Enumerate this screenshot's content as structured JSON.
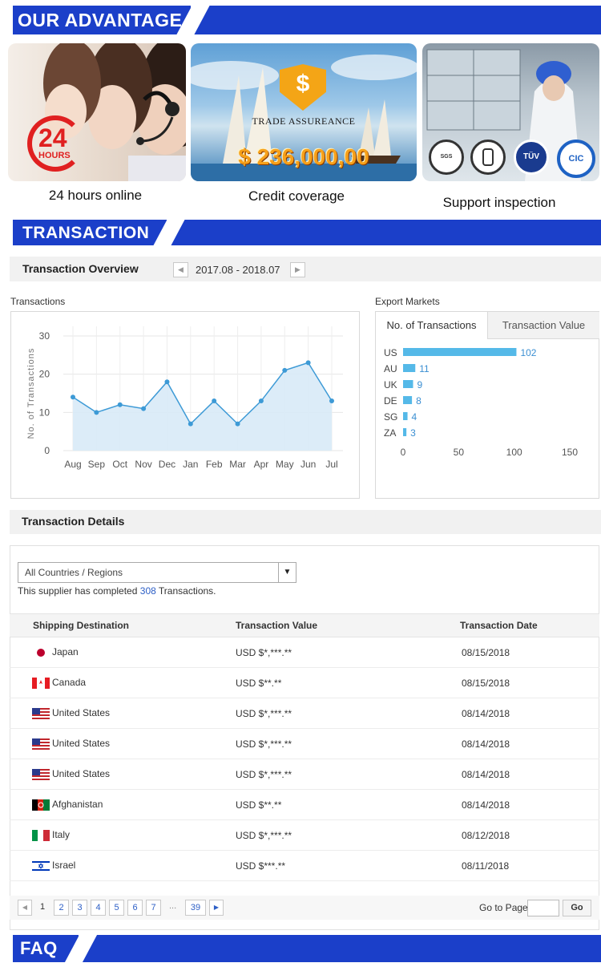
{
  "advantage": {
    "heading": "OUR ADVANTAGE",
    "cards": [
      {
        "caption": "24 hours online",
        "badge_number": "24",
        "badge_word": "HOURS"
      },
      {
        "caption": "Credit coverage",
        "headline": "TRADE ASSUREANCE",
        "amount": "$ 236,000,00"
      },
      {
        "caption": "Support inspection",
        "seals": [
          "SGS",
          "",
          "TÜV",
          "CIC"
        ]
      }
    ]
  },
  "transaction": {
    "heading": "TRANSACTION",
    "overview_title": "Transaction Overview",
    "date_range": "2017.08 - 2018.07",
    "transactions_label": "Transactions",
    "export_label": "Export Markets",
    "tab_count": "No. of Transactions",
    "tab_value": "Transaction Value",
    "details_title": "Transaction Details",
    "region_select": "All Countries / Regions",
    "completed_prefix": "This supplier has completed",
    "completed_count": "308",
    "completed_suffix": "Transactions.",
    "columns": [
      "Shipping Destination",
      "Transaction Value",
      "Transaction Date"
    ],
    "rows": [
      {
        "country": "Japan",
        "flag": "jp",
        "value": "USD $*,***.**",
        "date": "08/15/2018"
      },
      {
        "country": "Canada",
        "flag": "ca",
        "value": "USD $**.**",
        "date": "08/15/2018"
      },
      {
        "country": "United States",
        "flag": "us",
        "value": "USD $*,***.**",
        "date": "08/14/2018"
      },
      {
        "country": "United States",
        "flag": "us",
        "value": "USD $*,***.**",
        "date": "08/14/2018"
      },
      {
        "country": "United States",
        "flag": "us",
        "value": "USD $*,***.**",
        "date": "08/14/2018"
      },
      {
        "country": "Afghanistan",
        "flag": "af",
        "value": "USD $**.**",
        "date": "08/14/2018"
      },
      {
        "country": "Italy",
        "flag": "it",
        "value": "USD $*,***.**",
        "date": "08/12/2018"
      },
      {
        "country": "Israel",
        "flag": "il",
        "value": "USD $***.**",
        "date": "08/11/2018"
      }
    ],
    "pagination": {
      "current": "1",
      "pages": [
        "2",
        "3",
        "4",
        "5",
        "6",
        "7"
      ],
      "ellipsis": "...",
      "last": "39",
      "goto_label": "Go to Page",
      "go_button": "Go"
    }
  },
  "faq": {
    "heading": "FAQ"
  },
  "chart_data": [
    {
      "type": "area",
      "title": "",
      "xlabel": "",
      "ylabel": "No. of Transactions",
      "categories": [
        "Aug",
        "Sep",
        "Oct",
        "Nov",
        "Dec",
        "Jan",
        "Feb",
        "Mar",
        "Apr",
        "May",
        "Jun",
        "Jul"
      ],
      "values": [
        14,
        10,
        12,
        11,
        18,
        7,
        13,
        7,
        13,
        21,
        23,
        13
      ],
      "ylim": [
        0,
        30
      ],
      "yticks": [
        0,
        10,
        20,
        30
      ],
      "grid": true,
      "color": "#3d9ad6"
    },
    {
      "type": "bar",
      "orientation": "horizontal",
      "categories": [
        "US",
        "AU",
        "UK",
        "DE",
        "SG",
        "ZA"
      ],
      "values": [
        102,
        11,
        9,
        8,
        4,
        3
      ],
      "xlim": [
        0,
        150
      ],
      "xticks": [
        0,
        50,
        100,
        150
      ],
      "color": "#55b9e8"
    }
  ]
}
